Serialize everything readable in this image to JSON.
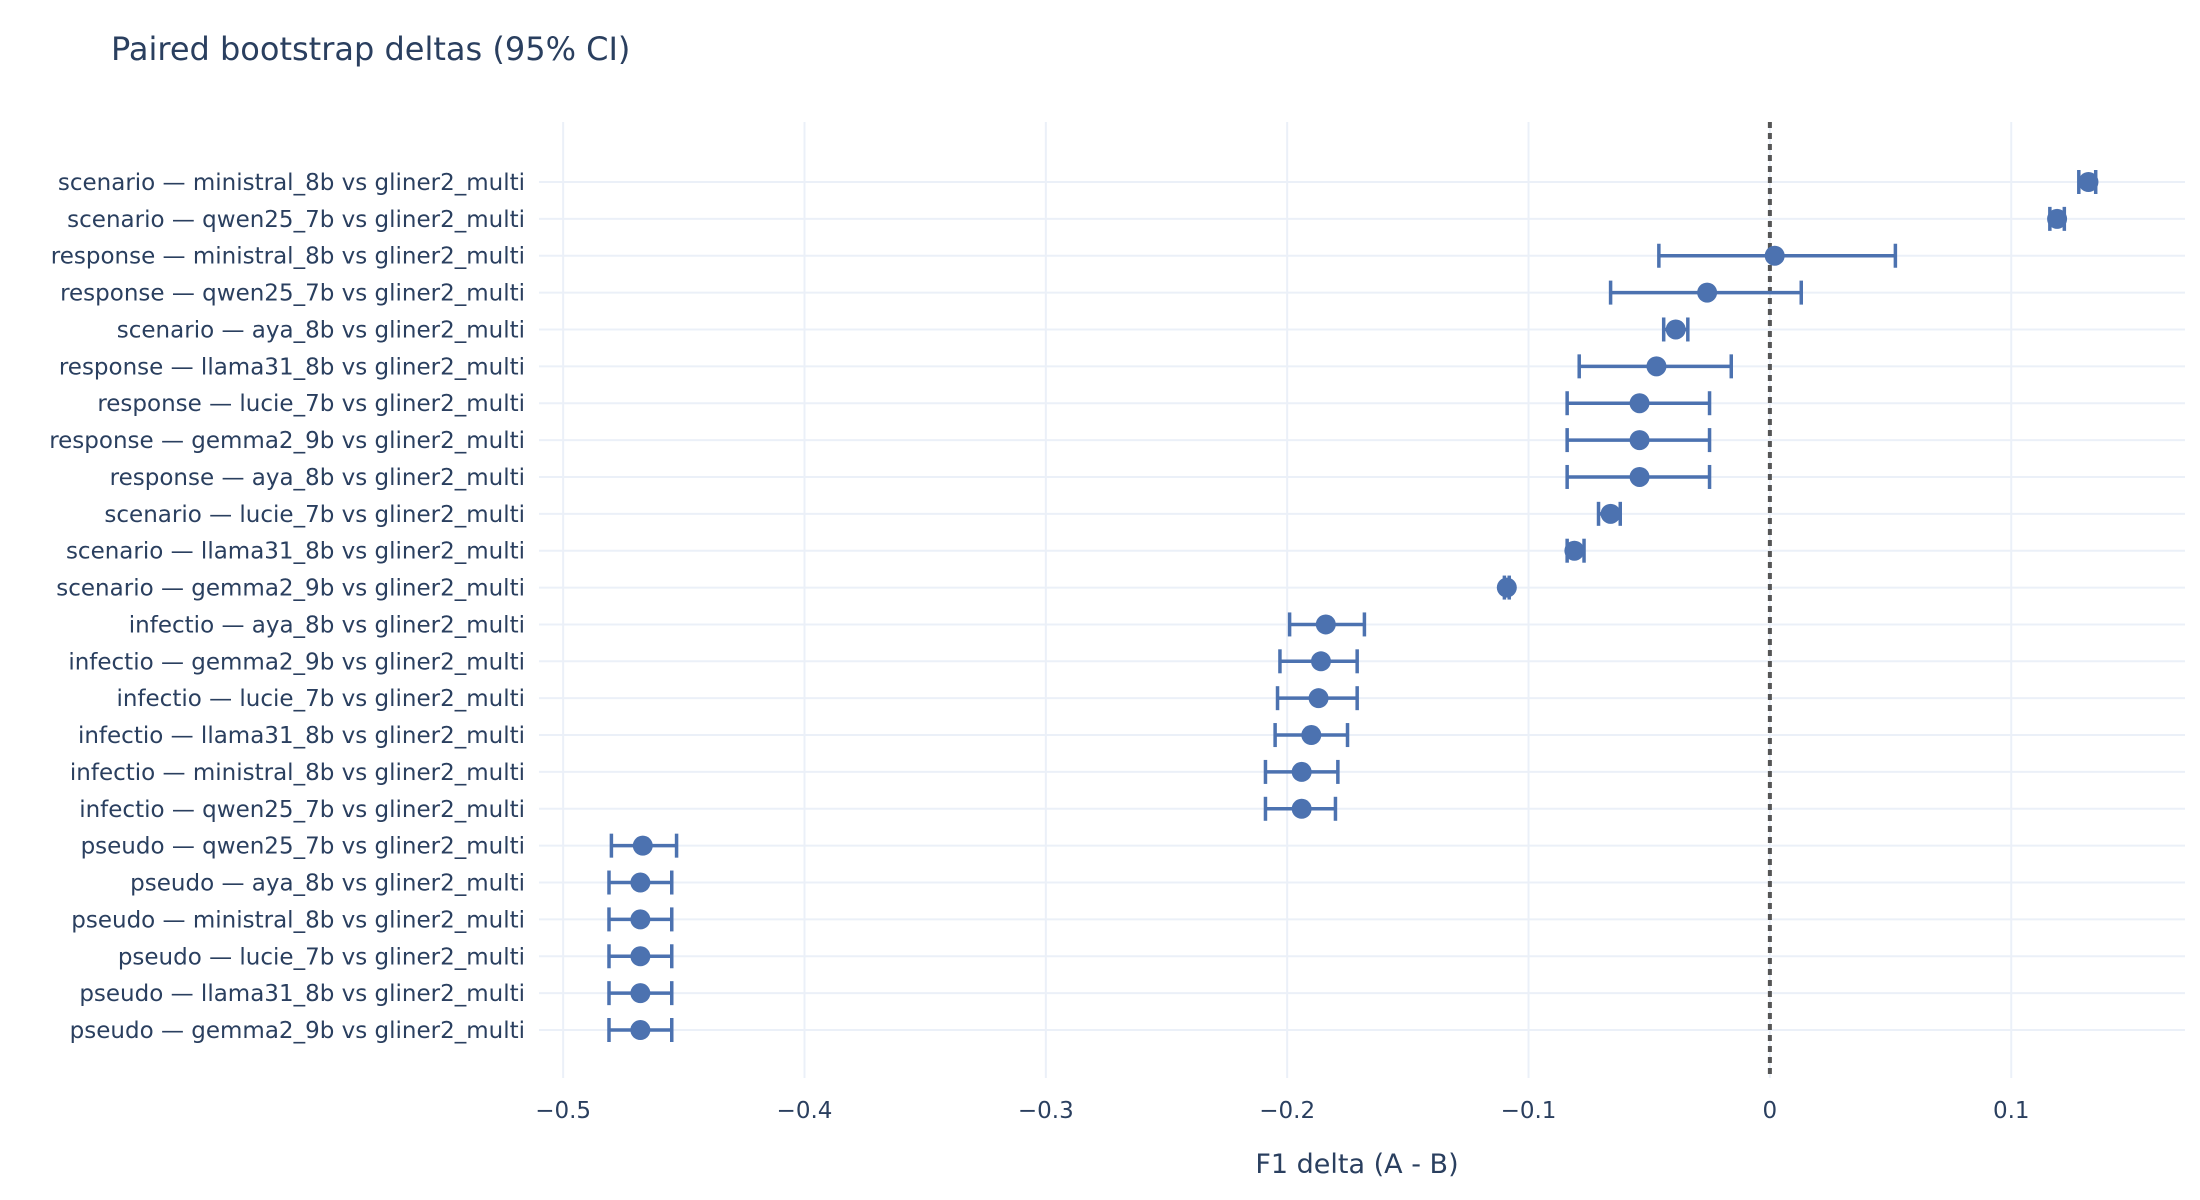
{
  "chart_data": {
    "type": "scatter",
    "title": "Paired bootstrap deltas (95% CI)",
    "xlabel": "F1 delta (A - B)",
    "ylabel": "",
    "xlim": [
      -0.51,
      0.172
    ],
    "x_ticks": [
      -0.5,
      -0.4,
      -0.3,
      -0.2,
      -0.1,
      0,
      0.1
    ],
    "x_tick_labels": [
      "−0.5",
      "−0.4",
      "−0.3",
      "−0.2",
      "−0.1",
      "0",
      "0.1"
    ],
    "grid": true,
    "reference_line": {
      "x": 0,
      "style": "dotted"
    },
    "colors": {
      "marker": "#4c72b0",
      "reference": "#555555",
      "grid": "#ebf0f8",
      "text": "#2a3f5f"
    },
    "categories": [
      "scenario — ministral_8b vs gliner2_multi",
      "scenario — qwen25_7b vs gliner2_multi",
      "response — ministral_8b vs gliner2_multi",
      "response — qwen25_7b vs gliner2_multi",
      "scenario — aya_8b vs gliner2_multi",
      "response — llama31_8b vs gliner2_multi",
      "response — lucie_7b vs gliner2_multi",
      "response — gemma2_9b vs gliner2_multi",
      "response — aya_8b vs gliner2_multi",
      "scenario — lucie_7b vs gliner2_multi",
      "scenario — llama31_8b vs gliner2_multi",
      "scenario — gemma2_9b vs gliner2_multi",
      "infectio — aya_8b vs gliner2_multi",
      "infectio — gemma2_9b vs gliner2_multi",
      "infectio — lucie_7b vs gliner2_multi",
      "infectio — llama31_8b vs gliner2_multi",
      "infectio — ministral_8b vs gliner2_multi",
      "infectio — qwen25_7b vs gliner2_multi",
      "pseudo — qwen25_7b vs gliner2_multi",
      "pseudo — aya_8b vs gliner2_multi",
      "pseudo — ministral_8b vs gliner2_multi",
      "pseudo — lucie_7b vs gliner2_multi",
      "pseudo — llama31_8b vs gliner2_multi",
      "pseudo — gemma2_9b vs gliner2_multi"
    ],
    "values": [
      0.132,
      0.119,
      0.002,
      -0.026,
      -0.039,
      -0.047,
      -0.054,
      -0.054,
      -0.054,
      -0.066,
      -0.081,
      -0.109,
      -0.184,
      -0.186,
      -0.187,
      -0.19,
      -0.194,
      -0.194,
      -0.467,
      -0.468,
      -0.468,
      -0.468,
      -0.468,
      -0.468
    ],
    "ci_low": [
      0.128,
      0.116,
      -0.046,
      -0.066,
      -0.044,
      -0.079,
      -0.084,
      -0.084,
      -0.084,
      -0.071,
      -0.084,
      -0.11,
      -0.199,
      -0.203,
      -0.204,
      -0.205,
      -0.209,
      -0.209,
      -0.48,
      -0.481,
      -0.481,
      -0.481,
      -0.481,
      -0.481
    ],
    "ci_high": [
      0.135,
      0.122,
      0.052,
      0.013,
      -0.034,
      -0.016,
      -0.025,
      -0.025,
      -0.025,
      -0.062,
      -0.077,
      -0.108,
      -0.168,
      -0.171,
      -0.171,
      -0.175,
      -0.179,
      -0.18,
      -0.453,
      -0.455,
      -0.455,
      -0.455,
      -0.455,
      -0.455
    ]
  }
}
